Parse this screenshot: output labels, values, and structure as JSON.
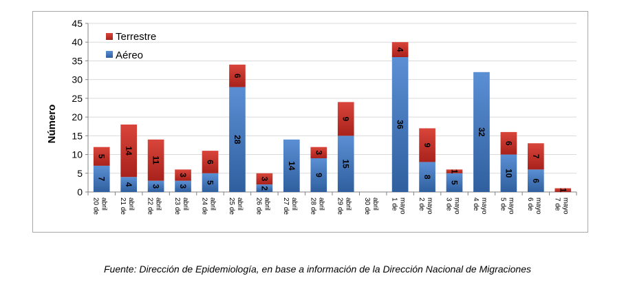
{
  "chart_data": {
    "type": "bar",
    "stacked": true,
    "ylabel": "Número",
    "xlabel": "",
    "title": "",
    "ylim": [
      0,
      45
    ],
    "yticks": [
      0,
      5,
      10,
      15,
      20,
      25,
      30,
      35,
      40,
      45
    ],
    "grid": true,
    "legend_position": "top-left",
    "categories": [
      [
        "20 de",
        "abril"
      ],
      [
        "21 de",
        "abril"
      ],
      [
        "22 de",
        "abril"
      ],
      [
        "23 de",
        "abril"
      ],
      [
        "24 de",
        "abril"
      ],
      [
        "25 de",
        "abril"
      ],
      [
        "26 de",
        "abril"
      ],
      [
        "27 de",
        "abril"
      ],
      [
        "28 de",
        "abril"
      ],
      [
        "29 de",
        "abril"
      ],
      [
        "30 de",
        "abril"
      ],
      [
        "1 de",
        "mayo"
      ],
      [
        "2 de",
        "mayo"
      ],
      [
        "3 de",
        "mayo"
      ],
      [
        "4 de",
        "mayo"
      ],
      [
        "5 de",
        "mayo"
      ],
      [
        "6 de",
        "mayo"
      ],
      [
        "7 de",
        "mayo"
      ]
    ],
    "series": [
      {
        "name": "Aéreo",
        "color": "#4a7ebf",
        "values": [
          7,
          4,
          3,
          3,
          5,
          28,
          2,
          14,
          9,
          15,
          0,
          36,
          8,
          5,
          32,
          10,
          6,
          0
        ],
        "labels": [
          "7",
          "4",
          "3",
          "3",
          "5",
          "28",
          "2",
          "14",
          "9",
          "15",
          "",
          "36",
          "8",
          "5",
          "32",
          "10",
          "6",
          ""
        ]
      },
      {
        "name": "Terrestre",
        "color": "#c0392b",
        "values": [
          5,
          14,
          11,
          3,
          6,
          6,
          3,
          0,
          3,
          9,
          0,
          4,
          9,
          1,
          0,
          6,
          7,
          1
        ],
        "labels": [
          "5",
          "14",
          "11",
          "3",
          "6",
          "6",
          "3",
          "",
          "3",
          "9",
          "",
          "4",
          "9",
          "1",
          "",
          "6",
          "7",
          "1"
        ]
      }
    ],
    "legend_order": [
      "Terrestre",
      "Aéreo"
    ]
  },
  "source_note": "Fuente: Dirección de Epidemiología, en base a información de la Dirección Nacional de Migraciones"
}
